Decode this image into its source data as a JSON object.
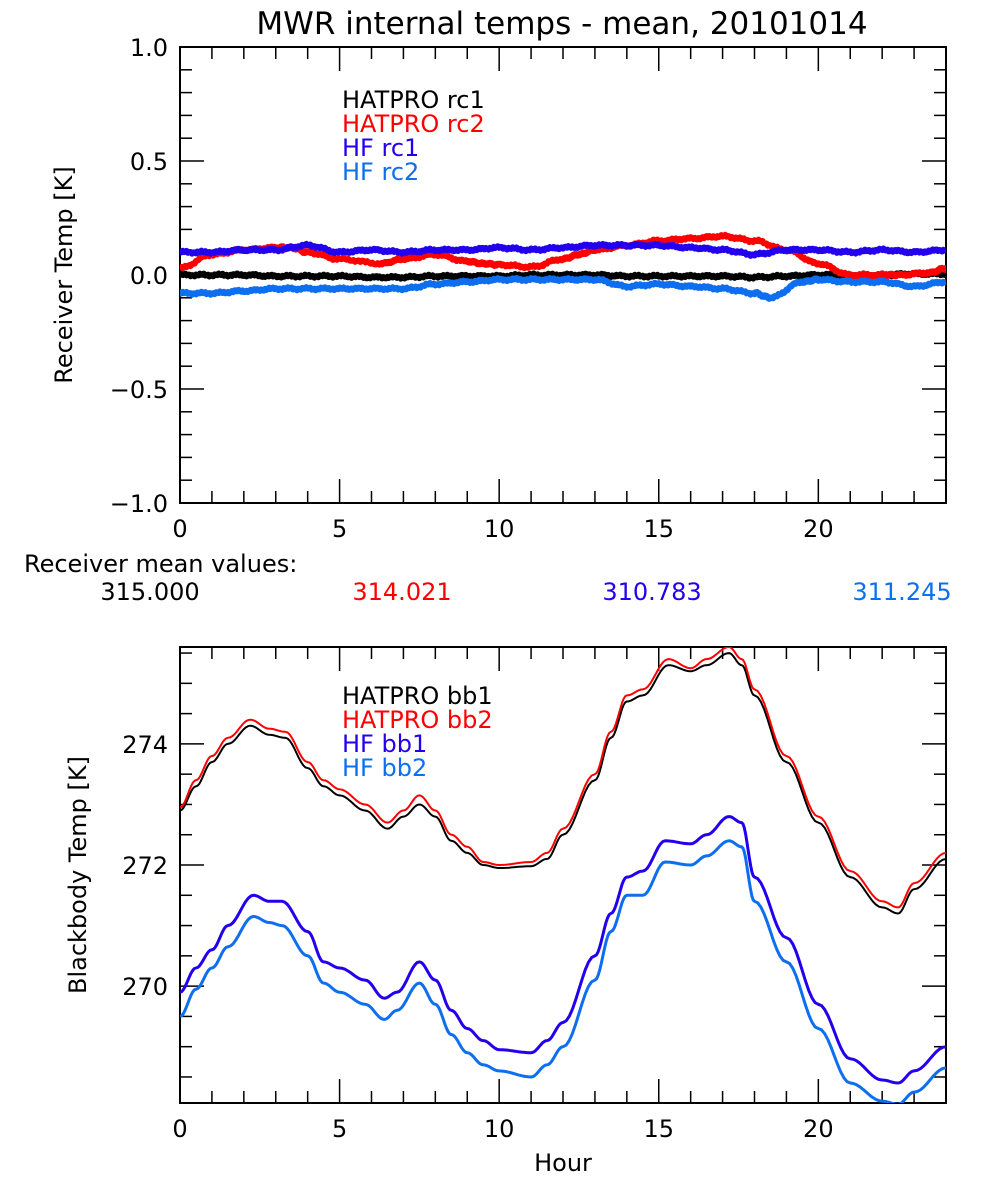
{
  "chart_data": [
    {
      "type": "line",
      "title": "MWR internal temps - mean, 20101014",
      "xlabel": "",
      "ylabel": "Receiver Temp [K]",
      "xlim": [
        0,
        24
      ],
      "ylim": [
        -1.0,
        1.0
      ],
      "xticks": [
        0,
        5,
        10,
        15,
        20
      ],
      "xtick_labels": [
        "0",
        "5",
        "10",
        "15",
        "20"
      ],
      "yticks": [
        1.0,
        0.5,
        0.0,
        -0.5,
        -1.0
      ],
      "ytick_labels": [
        "1.0",
        "0.5",
        "0.0",
        "−0.5",
        "−1.0"
      ],
      "grid": false,
      "legend_position": "top-center (inside)",
      "series": [
        {
          "name": "HATPRO rc1",
          "color": "#000000",
          "x": [
            0,
            1,
            2,
            3,
            4,
            5,
            6,
            7,
            8,
            9,
            10,
            11,
            12,
            13,
            14,
            15,
            16,
            17,
            18,
            19,
            20,
            21,
            22,
            23,
            24
          ],
          "values": [
            0.0,
            0.0,
            0.0,
            -0.005,
            -0.005,
            -0.005,
            -0.01,
            -0.01,
            -0.005,
            -0.005,
            -0.005,
            0.0,
            0.0,
            0.0,
            -0.005,
            -0.005,
            -0.005,
            -0.005,
            -0.01,
            -0.005,
            0.0,
            0.0,
            0.0,
            0.005,
            0.005
          ]
        },
        {
          "name": "HATPRO rc2",
          "color": "#ff0000",
          "x": [
            0,
            1,
            2,
            3,
            3.5,
            4,
            5,
            6.3,
            7,
            8,
            9,
            9.5,
            10,
            11,
            12,
            12.5,
            13,
            14,
            15,
            16,
            17,
            18,
            19,
            20,
            21,
            22,
            22.5,
            23.5,
            24
          ],
          "values": [
            0.03,
            0.09,
            0.11,
            0.12,
            0.12,
            0.1,
            0.07,
            0.05,
            0.07,
            0.09,
            0.06,
            0.05,
            0.045,
            0.035,
            0.07,
            0.09,
            0.11,
            0.13,
            0.15,
            0.16,
            0.17,
            0.15,
            0.11,
            0.05,
            0.0,
            0.0,
            0.0,
            0.01,
            0.03
          ]
        },
        {
          "name": "HF rc1",
          "color": "#2200ee",
          "x": [
            0,
            1,
            2,
            3,
            4,
            5,
            6,
            7,
            8,
            9,
            10,
            11,
            12,
            13,
            14,
            15,
            16,
            17,
            18,
            19,
            20,
            21,
            22,
            23,
            24
          ],
          "values": [
            0.1,
            0.1,
            0.11,
            0.11,
            0.13,
            0.1,
            0.11,
            0.1,
            0.11,
            0.11,
            0.12,
            0.11,
            0.12,
            0.13,
            0.13,
            0.13,
            0.12,
            0.11,
            0.09,
            0.11,
            0.11,
            0.1,
            0.11,
            0.1,
            0.11
          ]
        },
        {
          "name": "HF rc2",
          "color": "#0d6fef",
          "x": [
            0,
            1,
            2,
            3,
            4,
            5,
            6,
            7,
            8,
            9,
            10,
            11,
            12,
            13,
            14,
            15,
            16,
            17,
            18,
            18.5,
            19.5,
            20,
            21,
            22,
            23,
            24
          ],
          "values": [
            -0.08,
            -0.08,
            -0.07,
            -0.06,
            -0.06,
            -0.06,
            -0.06,
            -0.06,
            -0.04,
            -0.03,
            -0.02,
            -0.02,
            -0.02,
            -0.02,
            -0.05,
            -0.04,
            -0.05,
            -0.06,
            -0.08,
            -0.1,
            -0.03,
            -0.02,
            -0.03,
            -0.03,
            -0.05,
            -0.03
          ]
        }
      ]
    },
    {
      "type": "line",
      "title": "",
      "xlabel": "Hour",
      "ylabel": "Blackbody Temp [K]",
      "xlim": [
        0,
        24
      ],
      "ylim": [
        268.07,
        275.6
      ],
      "xticks": [
        0,
        5,
        10,
        15,
        20
      ],
      "xtick_labels": [
        "0",
        "5",
        "10",
        "15",
        "20"
      ],
      "yticks": [
        274,
        272,
        270
      ],
      "ytick_labels": [
        "274",
        "272",
        "270"
      ],
      "grid": false,
      "legend_position": "top-center (inside)",
      "series": [
        {
          "name": "HATPRO bb1",
          "color": "#000000",
          "x": [
            0,
            0.5,
            1,
            1.5,
            2.2,
            2.8,
            3.3,
            4,
            4.5,
            5,
            5.8,
            6.5,
            7,
            7.5,
            8,
            8.5,
            9,
            9.5,
            10,
            11,
            11.5,
            12,
            13,
            13.5,
            14,
            14.5,
            15.3,
            16,
            16.5,
            17.2,
            17.6,
            18,
            19,
            20,
            21,
            22,
            22.5,
            23,
            24
          ],
          "values": [
            272.9,
            273.3,
            273.7,
            274.0,
            274.3,
            274.15,
            274.1,
            273.6,
            273.3,
            273.15,
            272.9,
            272.6,
            272.8,
            273.0,
            272.8,
            272.4,
            272.2,
            272.0,
            271.95,
            271.98,
            272.1,
            272.5,
            273.4,
            274.1,
            274.7,
            274.8,
            275.3,
            275.2,
            275.3,
            275.5,
            275.3,
            274.8,
            273.7,
            272.7,
            271.8,
            271.3,
            271.2,
            271.6,
            272.1
          ]
        },
        {
          "name": "HATPRO bb2",
          "color": "#ff0000",
          "x": [
            0,
            0.5,
            1,
            1.5,
            2.2,
            2.8,
            3.3,
            4,
            4.5,
            5,
            5.8,
            6.5,
            7,
            7.5,
            8,
            8.5,
            9,
            9.5,
            10,
            11,
            11.5,
            12,
            13,
            13.5,
            14,
            14.5,
            15.3,
            16,
            16.5,
            17.2,
            17.6,
            18,
            19,
            20,
            21,
            22,
            22.5,
            23,
            24
          ],
          "values": [
            272.95,
            273.4,
            273.8,
            274.1,
            274.4,
            274.25,
            274.2,
            273.7,
            273.4,
            273.25,
            273.0,
            272.7,
            272.9,
            273.15,
            272.9,
            272.5,
            272.3,
            272.05,
            272.0,
            272.05,
            272.2,
            272.6,
            273.5,
            274.2,
            274.8,
            274.9,
            275.4,
            275.25,
            275.4,
            275.6,
            275.4,
            274.9,
            273.8,
            272.8,
            271.9,
            271.4,
            271.3,
            271.7,
            272.2
          ]
        },
        {
          "name": "HF bb1",
          "color": "#2200ee",
          "x": [
            0,
            0.5,
            1,
            1.5,
            2.3,
            2.8,
            3.2,
            4,
            4.5,
            5,
            5.8,
            6.4,
            6.8,
            7.5,
            8,
            8.5,
            9,
            9.5,
            10,
            11,
            11.5,
            12,
            13,
            13.5,
            14,
            14.5,
            15.2,
            16,
            16.5,
            17.2,
            17.6,
            18,
            19,
            20,
            21,
            22,
            22.5,
            23,
            24
          ],
          "values": [
            269.9,
            270.3,
            270.6,
            271.0,
            271.5,
            271.4,
            271.4,
            270.9,
            270.4,
            270.3,
            270.1,
            269.8,
            269.9,
            270.4,
            270.1,
            269.6,
            269.3,
            269.1,
            268.95,
            268.9,
            269.1,
            269.4,
            270.5,
            271.2,
            271.8,
            271.9,
            272.4,
            272.35,
            272.5,
            272.8,
            272.7,
            271.8,
            270.8,
            269.7,
            268.8,
            268.45,
            268.4,
            268.6,
            269.0
          ]
        },
        {
          "name": "HF bb2",
          "color": "#0d6fef",
          "x": [
            0,
            0.5,
            1,
            1.5,
            2.3,
            2.8,
            3.2,
            4,
            4.5,
            5,
            5.8,
            6.4,
            6.8,
            7.5,
            8,
            8.5,
            9,
            9.5,
            10,
            11,
            11.5,
            12,
            13,
            13.5,
            14,
            14.5,
            15.2,
            16,
            16.5,
            17.2,
            17.6,
            18,
            19,
            20,
            21,
            22,
            22.5,
            23,
            24
          ],
          "values": [
            269.5,
            269.95,
            270.3,
            270.65,
            271.15,
            271.05,
            271.0,
            270.5,
            270.05,
            269.9,
            269.7,
            269.45,
            269.6,
            270.05,
            269.7,
            269.2,
            268.9,
            268.7,
            268.6,
            268.5,
            268.7,
            269.0,
            270.1,
            270.9,
            271.5,
            271.5,
            272.05,
            272.0,
            272.15,
            272.4,
            272.3,
            271.4,
            270.4,
            269.3,
            268.4,
            268.1,
            268.05,
            268.25,
            268.65
          ]
        }
      ]
    }
  ],
  "receiver_mean": {
    "label": "Receiver mean values:",
    "values": [
      {
        "text": "315.000",
        "color": "#000000"
      },
      {
        "text": "314.021",
        "color": "#ff0000"
      },
      {
        "text": "310.783",
        "color": "#2200ee"
      },
      {
        "text": "311.245",
        "color": "#0d6fef"
      }
    ]
  }
}
